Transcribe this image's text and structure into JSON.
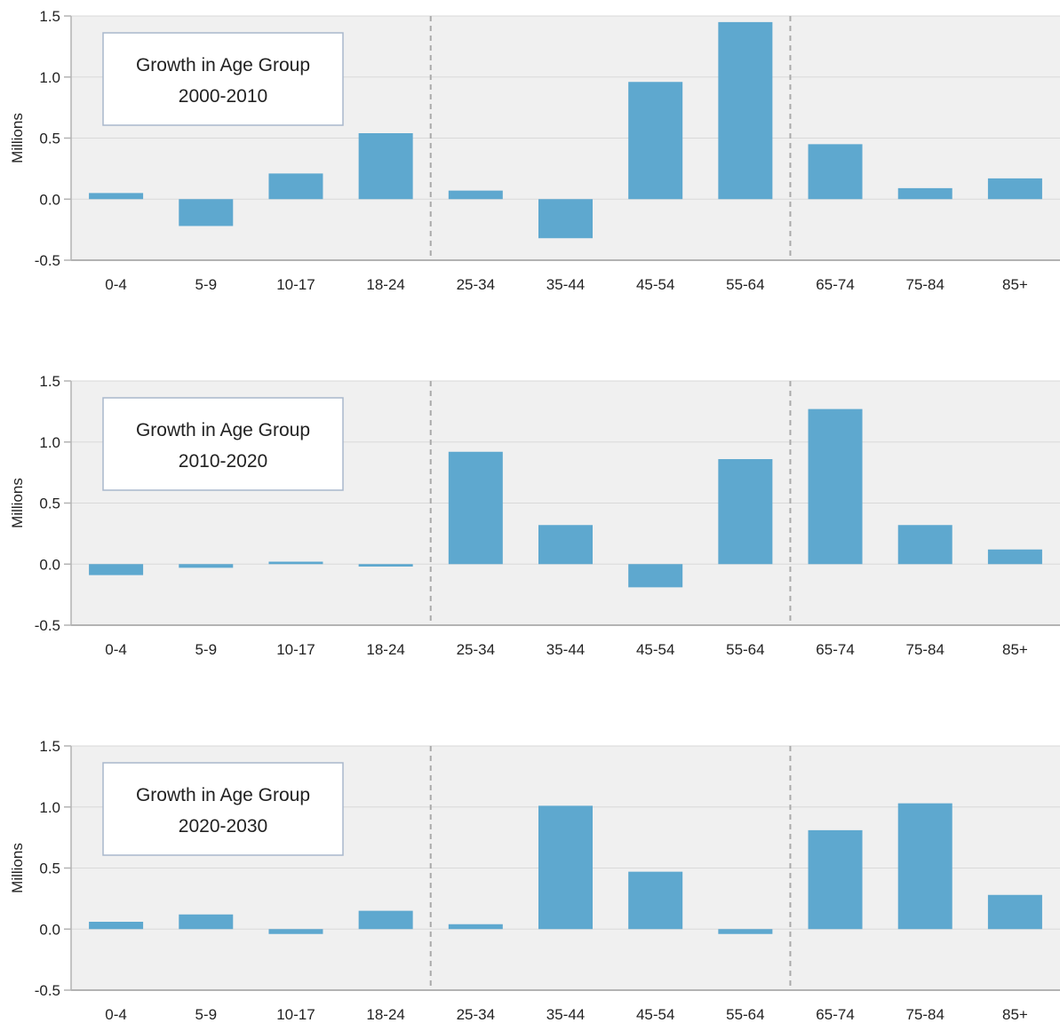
{
  "chart_data": [
    {
      "type": "bar",
      "title_lines": [
        "Growth in Age Group",
        "2000-2010"
      ],
      "ylabel": "Millions",
      "ylim": [
        -0.5,
        1.5
      ],
      "yticks": [
        "1.5",
        "1.0",
        "0.5",
        "0.0",
        "-0.5"
      ],
      "ytick_values": [
        1.5,
        1.0,
        0.5,
        0.0,
        -0.5
      ],
      "categories": [
        "0-4",
        "5-9",
        "10-17",
        "18-24",
        "25-34",
        "35-44",
        "45-54",
        "55-64",
        "65-74",
        "75-84",
        "85+"
      ],
      "values": [
        0.05,
        -0.22,
        0.21,
        0.54,
        0.07,
        -0.32,
        0.96,
        1.45,
        0.45,
        0.09,
        0.17
      ]
    },
    {
      "type": "bar",
      "title_lines": [
        "Growth in Age Group",
        "2010-2020"
      ],
      "ylabel": "Millions",
      "ylim": [
        -0.5,
        1.5
      ],
      "yticks": [
        "1.5",
        "1.0",
        "0.5",
        "0.0",
        "-0.5"
      ],
      "ytick_values": [
        1.5,
        1.0,
        0.5,
        0.0,
        -0.5
      ],
      "categories": [
        "0-4",
        "5-9",
        "10-17",
        "18-24",
        "25-34",
        "35-44",
        "45-54",
        "55-64",
        "65-74",
        "75-84",
        "85+"
      ],
      "values": [
        -0.09,
        -0.03,
        0.02,
        -0.02,
        0.92,
        0.32,
        -0.19,
        0.86,
        1.27,
        0.32,
        0.12
      ]
    },
    {
      "type": "bar",
      "title_lines": [
        "Growth in Age Group",
        "2020-2030"
      ],
      "ylabel": "Millions",
      "ylim": [
        -0.5,
        1.5
      ],
      "yticks": [
        "1.5",
        "1.0",
        "0.5",
        "0.0",
        "-0.5"
      ],
      "ytick_values": [
        1.5,
        1.0,
        0.5,
        0.0,
        -0.5
      ],
      "categories": [
        "0-4",
        "5-9",
        "10-17",
        "18-24",
        "25-34",
        "35-44",
        "45-54",
        "55-64",
        "65-74",
        "75-84",
        "85+"
      ],
      "values": [
        0.06,
        0.12,
        -0.04,
        0.15,
        0.04,
        1.01,
        0.47,
        -0.04,
        0.81,
        1.03,
        0.28
      ]
    }
  ],
  "colors": {
    "bar": "#5ea8cf",
    "plot_background": "#f0f0f0",
    "gridline": "#d9d9d9",
    "axis": "#b3b3b3",
    "divider": "#aaaaaa",
    "box_border": "#a9b7cc",
    "text": "#222222"
  }
}
